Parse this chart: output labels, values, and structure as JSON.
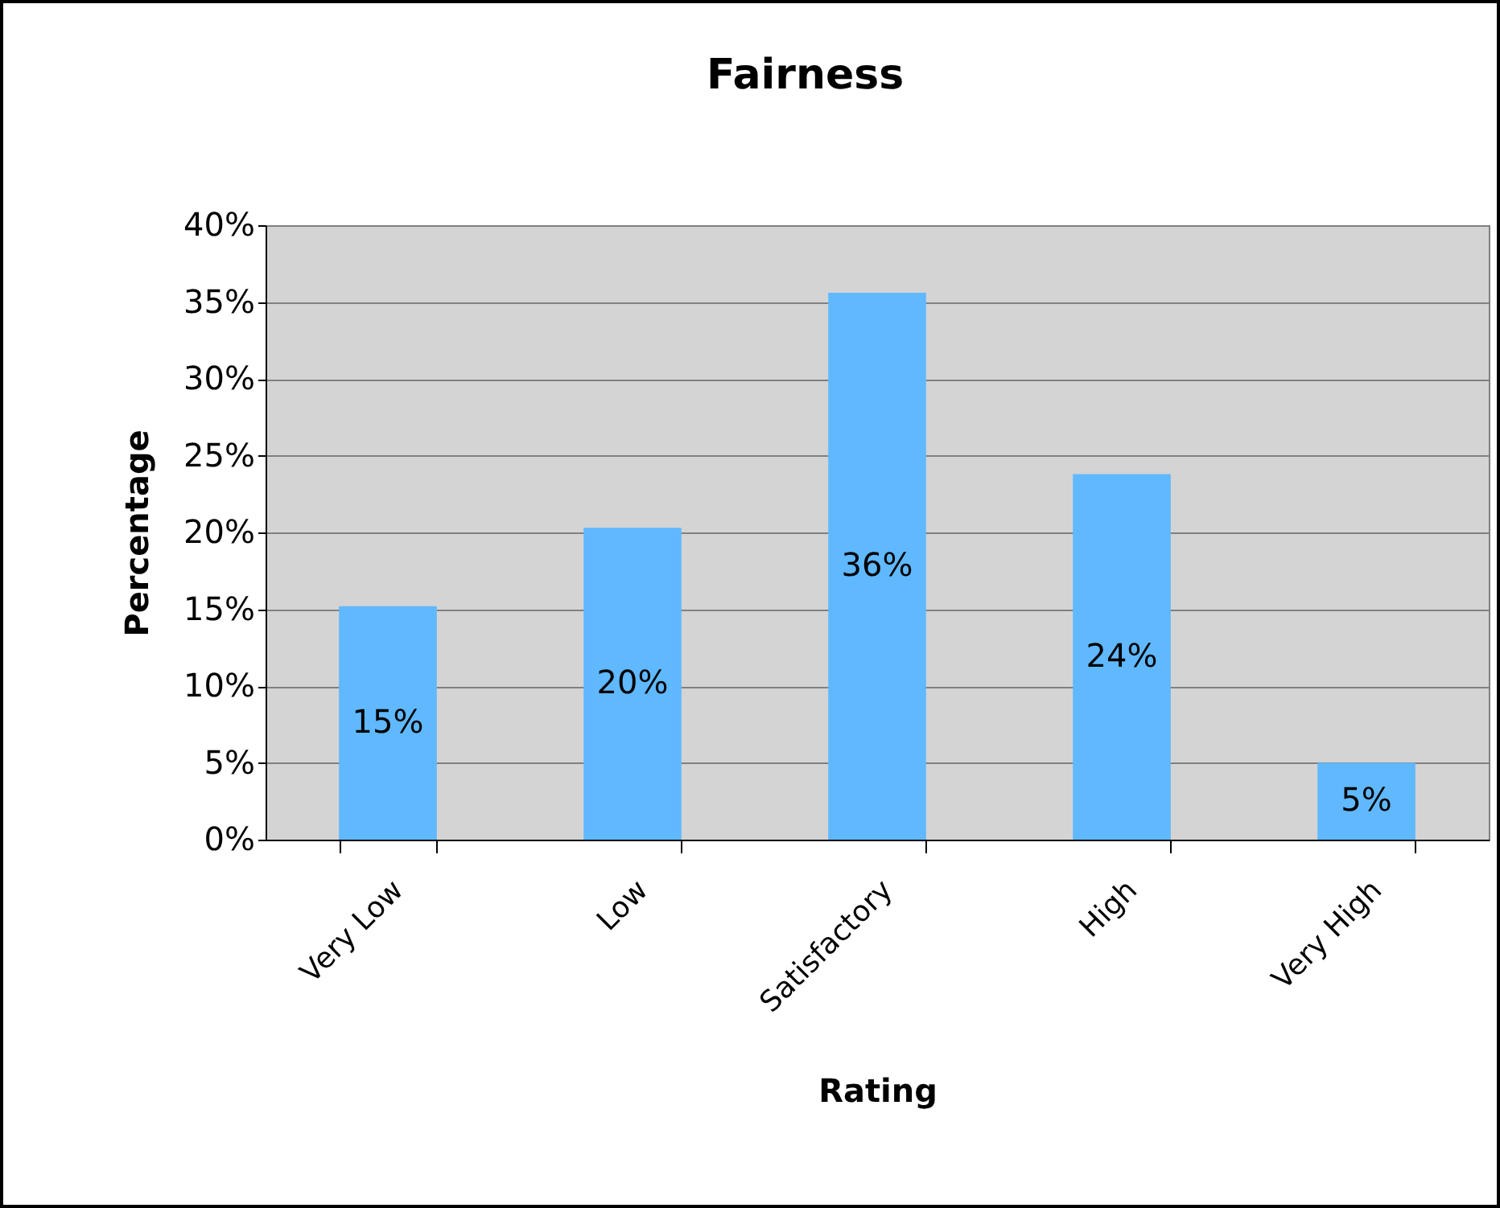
{
  "chart_data": {
    "type": "bar",
    "title": "Fairness",
    "xlabel": "Rating",
    "ylabel": "Percentage",
    "categories": [
      "Very Low",
      "Low",
      "Satisfactory",
      "High",
      "Very High"
    ],
    "values": [
      15.2,
      20.3,
      35.6,
      23.8,
      5.0
    ],
    "value_labels": [
      "15%",
      "20%",
      "36%",
      "24%",
      "5%"
    ],
    "color": "#60b8ff",
    "ylim": [
      0,
      40
    ],
    "yticks": [
      {
        "value": 0,
        "label": "0%"
      },
      {
        "value": 5,
        "label": "5%"
      },
      {
        "value": 10,
        "label": "10%"
      },
      {
        "value": 15,
        "label": "15%"
      },
      {
        "value": 20,
        "label": "20%"
      },
      {
        "value": 25,
        "label": "25%"
      },
      {
        "value": 30,
        "label": "30%"
      },
      {
        "value": 35,
        "label": "35%"
      },
      {
        "value": 40,
        "label": "40%"
      }
    ],
    "grid": "y"
  }
}
